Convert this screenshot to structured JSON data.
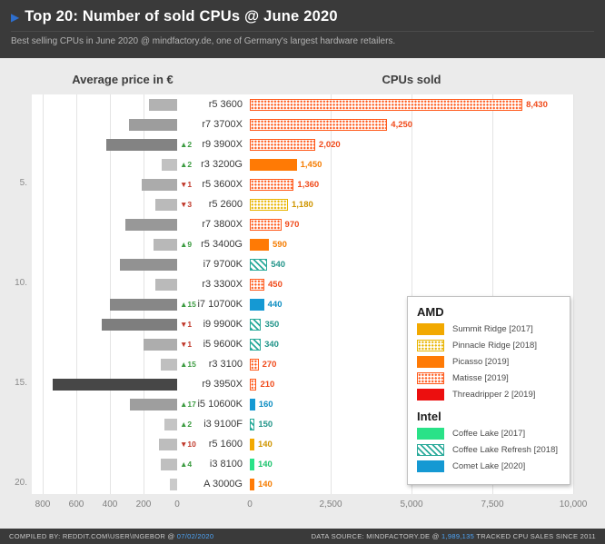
{
  "header": {
    "arrow": "▶",
    "title": "Top 20: Number of sold CPUs @ June 2020",
    "subtitle": "Best selling CPUs in June 2020 @ mindfactory.de, one of Germany's largest hardware retailers."
  },
  "chart_data": {
    "type": "bar",
    "title": "Top 20: Number of sold CPUs @ June 2020",
    "left_title": "Average price in €",
    "right_title": "CPUs sold",
    "left_axis": {
      "label": "Average price in €",
      "max": 800,
      "ticks": [
        {
          "v": 800,
          "label": "800"
        },
        {
          "v": 600,
          "label": "600"
        },
        {
          "v": 400,
          "label": "400"
        },
        {
          "v": 200,
          "label": "200"
        },
        {
          "v": 0,
          "label": "0"
        }
      ]
    },
    "right_axis": {
      "label": "CPUs sold",
      "max": 10000,
      "ticks": [
        {
          "v": 0,
          "label": "0"
        },
        {
          "v": 2500,
          "label": "2,500"
        },
        {
          "v": 5000,
          "label": "5,000"
        },
        {
          "v": 7500,
          "label": "7,500"
        },
        {
          "v": 10000,
          "label": "10,000"
        }
      ]
    },
    "rank_ticks": [
      "5.",
      "10.",
      "15.",
      "20."
    ],
    "rows": [
      {
        "rank": 1,
        "name": "r5 3600",
        "family": "matisse",
        "price_eur": 170,
        "sold": 8430,
        "sold_label": "8,430",
        "change": null
      },
      {
        "rank": 2,
        "name": "r7 3700X",
        "family": "matisse",
        "price_eur": 285,
        "sold": 4250,
        "sold_label": "4,250",
        "change": null
      },
      {
        "rank": 3,
        "name": "r9 3900X",
        "family": "matisse",
        "price_eur": 420,
        "sold": 2020,
        "sold_label": "2,020",
        "change": {
          "dir": "up",
          "label": "▲2"
        }
      },
      {
        "rank": 4,
        "name": "r3 3200G",
        "family": "picasso",
        "price_eur": 90,
        "sold": 1450,
        "sold_label": "1,450",
        "change": {
          "dir": "up",
          "label": "▲2"
        }
      },
      {
        "rank": 5,
        "name": "r5 3600X",
        "family": "matisse",
        "price_eur": 210,
        "sold": 1360,
        "sold_label": "1,360",
        "change": {
          "dir": "down",
          "label": "▼1"
        }
      },
      {
        "rank": 6,
        "name": "r5 2600",
        "family": "pinnacle",
        "price_eur": 130,
        "sold": 1180,
        "sold_label": "1,180",
        "change": {
          "dir": "down",
          "label": "▼3"
        }
      },
      {
        "rank": 7,
        "name": "r7 3800X",
        "family": "matisse",
        "price_eur": 310,
        "sold": 970,
        "sold_label": "970",
        "change": null
      },
      {
        "rank": 8,
        "name": "r5 3400G",
        "family": "picasso",
        "price_eur": 140,
        "sold": 590,
        "sold_label": "590",
        "change": {
          "dir": "up",
          "label": "▲9"
        }
      },
      {
        "rank": 9,
        "name": "i7 9700K",
        "family": "coffee_refresh",
        "price_eur": 340,
        "sold": 540,
        "sold_label": "540",
        "change": null
      },
      {
        "rank": 10,
        "name": "r3 3300X",
        "family": "matisse",
        "price_eur": 130,
        "sold": 450,
        "sold_label": "450",
        "change": null
      },
      {
        "rank": 11,
        "name": "i7 10700K",
        "family": "comet",
        "price_eur": 400,
        "sold": 440,
        "sold_label": "440",
        "change": {
          "dir": "up",
          "label": "▲15"
        }
      },
      {
        "rank": 12,
        "name": "i9 9900K",
        "family": "coffee_refresh",
        "price_eur": 450,
        "sold": 350,
        "sold_label": "350",
        "change": {
          "dir": "down",
          "label": "▼1"
        }
      },
      {
        "rank": 13,
        "name": "i5 9600K",
        "family": "coffee_refresh",
        "price_eur": 200,
        "sold": 340,
        "sold_label": "340",
        "change": {
          "dir": "down",
          "label": "▼1"
        }
      },
      {
        "rank": 14,
        "name": "r3 3100",
        "family": "matisse",
        "price_eur": 100,
        "sold": 270,
        "sold_label": "270",
        "change": {
          "dir": "up",
          "label": "▲15"
        }
      },
      {
        "rank": 15,
        "name": "r9 3950X",
        "family": "matisse",
        "price_eur": 740,
        "sold": 210,
        "sold_label": "210",
        "change": null
      },
      {
        "rank": 16,
        "name": "i5 10600K",
        "family": "comet",
        "price_eur": 280,
        "sold": 160,
        "sold_label": "160",
        "change": {
          "dir": "up",
          "label": "▲17"
        }
      },
      {
        "rank": 17,
        "name": "i3 9100F",
        "family": "coffee_refresh",
        "price_eur": 75,
        "sold": 150,
        "sold_label": "150",
        "change": {
          "dir": "up",
          "label": "▲2"
        }
      },
      {
        "rank": 18,
        "name": "r5 1600",
        "family": "summit",
        "price_eur": 110,
        "sold": 140,
        "sold_label": "140",
        "change": {
          "dir": "down",
          "label": "▼10"
        }
      },
      {
        "rank": 19,
        "name": "i3 8100",
        "family": "coffee",
        "price_eur": 100,
        "sold": 140,
        "sold_label": "140",
        "change": {
          "dir": "up",
          "label": "▲4"
        }
      },
      {
        "rank": 20,
        "name": "A 3000G",
        "family": "picasso",
        "price_eur": 45,
        "sold": 140,
        "sold_label": "140",
        "change": null
      }
    ]
  },
  "legend": {
    "groups": [
      {
        "title": "AMD",
        "items": [
          {
            "family": "summit",
            "label": "Summit Ridge [2017]"
          },
          {
            "family": "pinnacle",
            "label": "Pinnacle Ridge [2018]"
          },
          {
            "family": "picasso",
            "label": "Picasso [2019]"
          },
          {
            "family": "matisse",
            "label": "Matisse [2019]"
          },
          {
            "family": "threadripper",
            "label": "Threadripper 2 [2019]"
          }
        ]
      },
      {
        "title": "Intel",
        "items": [
          {
            "family": "coffee",
            "label": "Coffee Lake [2017]"
          },
          {
            "family": "coffee_refresh",
            "label": "Coffee Lake Refresh [2018]"
          },
          {
            "family": "comet",
            "label": "Comet Lake [2020]"
          }
        ]
      }
    ]
  },
  "colors": {
    "summit": "#f2a900",
    "pinnacle": "#e8b400",
    "picasso": "#ff7a05",
    "matisse": "#ff5a1c",
    "threadripper": "#ec0f0f",
    "coffee": "#2ae288",
    "coffee_refresh": "#2aaa9a",
    "comet": "#1599d3"
  },
  "patterns": {
    "summit": "solid",
    "pinnacle": "dots",
    "picasso": "solid",
    "matisse": "dots",
    "threadripper": "solid",
    "coffee": "solid",
    "coffee_refresh": "hatch",
    "comet": "solid"
  },
  "text_colors": {
    "summit": "#cf9500",
    "pinnacle": "#cf9500",
    "picasso": "#f57c00",
    "matisse": "#f04a1a",
    "threadripper": "#e01010",
    "coffee": "#1cc46e",
    "coffee_refresh": "#23958a",
    "comet": "#0e8ec2"
  },
  "footer": {
    "left_prefix": "COMPILED BY: REDDIT.COM\\USER\\INGEBOR @ ",
    "left_date": "07/02/2020",
    "right_prefix": "DATA SOURCE: MINDFACTORY.DE @ ",
    "right_count": "1,989,135",
    "right_suffix": " TRACKED CPU SALES SINCE 2011"
  }
}
